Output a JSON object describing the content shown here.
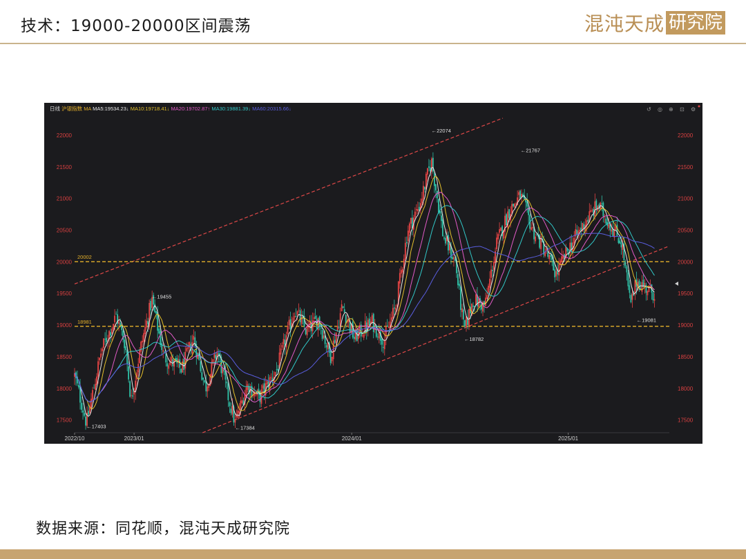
{
  "header": {
    "title": "技术：19000-20000区间震荡"
  },
  "logo": {
    "left": "混沌天成",
    "right": "研究院"
  },
  "footer": {
    "source": "数据来源：同花顺，混沌天成研究院"
  },
  "chart_data": {
    "type": "candlestick",
    "period_label": "日线",
    "instrument": "沪银指数",
    "ma_prefix": "MA",
    "ma_lines": [
      {
        "label": "MA5:19534.23",
        "arrow": "↓",
        "color": "#e8e8e8"
      },
      {
        "label": "MA10:19718.41",
        "arrow": "↓",
        "color": "#e5c02c"
      },
      {
        "label": "MA20:19702.87",
        "arrow": "↑",
        "color": "#e35bc8"
      },
      {
        "label": "MA30:19881.39",
        "arrow": "↓",
        "color": "#32c9c9"
      },
      {
        "label": "MA60:20315.66",
        "arrow": "↓",
        "color": "#5a5ee0"
      }
    ],
    "y_ticks": [
      "22000",
      "21500",
      "21000",
      "20500",
      "20000",
      "19500",
      "19000",
      "18500",
      "18000",
      "17500"
    ],
    "y_range": [
      17300,
      22250
    ],
    "x_ticks": [
      {
        "label": "2022/10",
        "t": 0.0
      },
      {
        "label": "2023/01",
        "t": 0.1
      },
      {
        "label": "2024/01",
        "t": 0.466
      },
      {
        "label": "2025/01",
        "t": 0.83
      }
    ],
    "horizontal_levels": [
      {
        "label": "20002",
        "value": 20002
      },
      {
        "label": "18981",
        "value": 18981
      }
    ],
    "annotations": [
      {
        "label": "22074",
        "value": 22074,
        "t": 0.6
      },
      {
        "label": "21767",
        "value": 21767,
        "t": 0.75
      },
      {
        "label": "19455",
        "value": 19455,
        "t": 0.13
      },
      {
        "label": "18782",
        "value": 18782,
        "t": 0.655
      },
      {
        "label": "19081",
        "value": 19081,
        "t": 0.945
      },
      {
        "label": "17403",
        "value": 17403,
        "t": 0.02
      },
      {
        "label": "17384",
        "value": 17384,
        "t": 0.27
      }
    ],
    "channel_lines": [
      {
        "t1": 0.0,
        "v1": 19650,
        "t2": 0.72,
        "v2": 22270
      },
      {
        "t1": 0.215,
        "v1": 17300,
        "t2": 1.0,
        "v2": 20250
      }
    ],
    "price_path": [
      {
        "t": 0.0,
        "v": 18200
      },
      {
        "t": 0.02,
        "v": 17450
      },
      {
        "t": 0.045,
        "v": 18600
      },
      {
        "t": 0.07,
        "v": 19150
      },
      {
        "t": 0.085,
        "v": 18700
      },
      {
        "t": 0.095,
        "v": 17800
      },
      {
        "t": 0.11,
        "v": 18600
      },
      {
        "t": 0.13,
        "v": 19400
      },
      {
        "t": 0.15,
        "v": 18500
      },
      {
        "t": 0.18,
        "v": 18300
      },
      {
        "t": 0.2,
        "v": 18800
      },
      {
        "t": 0.22,
        "v": 18000
      },
      {
        "t": 0.24,
        "v": 18600
      },
      {
        "t": 0.26,
        "v": 17800
      },
      {
        "t": 0.27,
        "v": 17450
      },
      {
        "t": 0.29,
        "v": 18050
      },
      {
        "t": 0.31,
        "v": 17850
      },
      {
        "t": 0.34,
        "v": 18300
      },
      {
        "t": 0.37,
        "v": 19250
      },
      {
        "t": 0.39,
        "v": 18900
      },
      {
        "t": 0.41,
        "v": 19100
      },
      {
        "t": 0.43,
        "v": 18500
      },
      {
        "t": 0.45,
        "v": 19300
      },
      {
        "t": 0.47,
        "v": 18800
      },
      {
        "t": 0.5,
        "v": 19050
      },
      {
        "t": 0.52,
        "v": 18750
      },
      {
        "t": 0.54,
        "v": 19300
      },
      {
        "t": 0.56,
        "v": 20500
      },
      {
        "t": 0.58,
        "v": 20900
      },
      {
        "t": 0.6,
        "v": 21600
      },
      {
        "t": 0.62,
        "v": 20400
      },
      {
        "t": 0.64,
        "v": 20000
      },
      {
        "t": 0.655,
        "v": 18900
      },
      {
        "t": 0.67,
        "v": 19400
      },
      {
        "t": 0.69,
        "v": 19300
      },
      {
        "t": 0.71,
        "v": 20300
      },
      {
        "t": 0.73,
        "v": 20800
      },
      {
        "t": 0.75,
        "v": 21050
      },
      {
        "t": 0.77,
        "v": 20500
      },
      {
        "t": 0.79,
        "v": 20200
      },
      {
        "t": 0.81,
        "v": 19800
      },
      {
        "t": 0.83,
        "v": 20200
      },
      {
        "t": 0.86,
        "v": 20650
      },
      {
        "t": 0.88,
        "v": 20900
      },
      {
        "t": 0.9,
        "v": 20600
      },
      {
        "t": 0.92,
        "v": 20300
      },
      {
        "t": 0.935,
        "v": 19300
      },
      {
        "t": 0.945,
        "v": 19700
      },
      {
        "t": 0.96,
        "v": 19600
      },
      {
        "t": 0.975,
        "v": 19500
      }
    ]
  }
}
